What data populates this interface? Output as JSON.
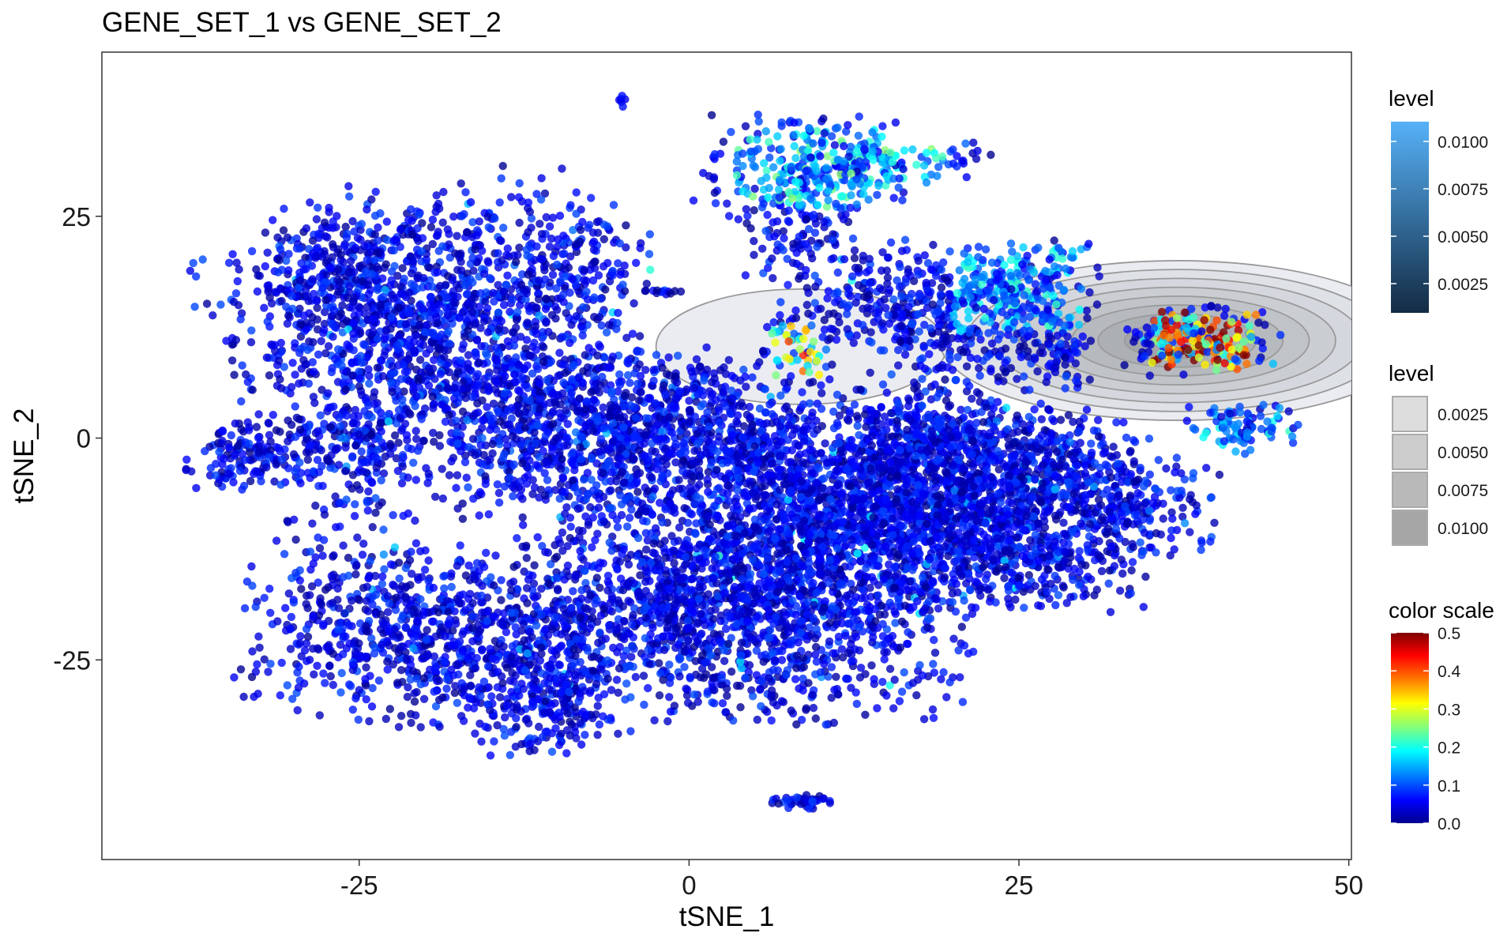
{
  "chart_data": {
    "type": "scatter",
    "title": "GENE_SET_1 vs GENE_SET_2",
    "xlabel": "tSNE_1",
    "ylabel": "tSNE_2",
    "xlim": [
      -44.5,
      50.2
    ],
    "ylim": [
      -47.5,
      43.5
    ],
    "x_ticks": [
      -25,
      0,
      25,
      50
    ],
    "y_ticks": [
      -25,
      0,
      25
    ],
    "grid": false,
    "point_color_variable": "color scale",
    "clusters": [
      {
        "cx": -20,
        "cy": 13,
        "sx": 7.5,
        "sy": 7,
        "n": 1500,
        "tilt": 0.25
      },
      {
        "cx": -33,
        "cy": -2,
        "sx": 2.5,
        "sy": 2,
        "n": 150,
        "tilt": 0.3
      },
      {
        "cx": -27,
        "cy": 18,
        "sx": 2.5,
        "sy": 3,
        "n": 150,
        "tilt": 0
      },
      {
        "cx": -25,
        "cy": -2,
        "sx": 2.5,
        "sy": 4,
        "n": 160,
        "tilt": 0
      },
      {
        "cx": -9,
        "cy": 20,
        "sx": 3,
        "sy": 3,
        "n": 120,
        "tilt": 0
      },
      {
        "cx": -19,
        "cy": -22,
        "sx": 7,
        "sy": 5,
        "n": 900,
        "tilt": -0.2
      },
      {
        "cx": -11,
        "cy": -30,
        "sx": 3,
        "sy": 3,
        "n": 200,
        "tilt": 0
      },
      {
        "cx": -10,
        "cy": -21,
        "sx": 1.5,
        "sy": 1.5,
        "n": 40,
        "tilt": 0
      },
      {
        "cx": -7,
        "cy": 0,
        "sx": 6.5,
        "sy": 4.5,
        "n": 1000,
        "tilt": 0
      },
      {
        "cx": 1,
        "cy": 5,
        "sx": 2,
        "sy": 2,
        "n": 80,
        "tilt": 0
      },
      {
        "cx": 5,
        "cy": -1,
        "sx": 2.5,
        "sy": 2.5,
        "n": 180,
        "tilt": 0
      },
      {
        "cx": 4,
        "cy": -18,
        "sx": 8,
        "sy": 6.5,
        "n": 1800,
        "tilt": 0
      },
      {
        "cx": 12,
        "cy": -10,
        "sx": 6,
        "sy": 4.5,
        "n": 700,
        "tilt": 0
      },
      {
        "cx": 18,
        "cy": -4,
        "sx": 7,
        "sy": 5,
        "n": 900,
        "tilt": 0
      },
      {
        "cx": 24,
        "cy": -12,
        "sx": 5,
        "sy": 3.5,
        "n": 550,
        "tilt": 0
      },
      {
        "cx": 27,
        "cy": -4,
        "sx": 4,
        "sy": 3,
        "n": 300,
        "tilt": 0
      },
      {
        "cx": 34,
        "cy": -8,
        "sx": 3,
        "sy": 3,
        "n": 150,
        "tilt": 0
      },
      {
        "cx": 17,
        "cy": 0,
        "sx": 3.5,
        "sy": 2.5,
        "n": 250,
        "tilt": 0
      },
      {
        "cx": 9,
        "cy": 30,
        "sx": 4,
        "sy": 3,
        "n": 280,
        "tilt": 0
      },
      {
        "cx": 15,
        "cy": 31,
        "sx": 4,
        "sy": 1.2,
        "n": 100,
        "tilt": 0
      },
      {
        "cx": 8,
        "cy": 23,
        "sx": 2,
        "sy": 3,
        "n": 100,
        "tilt": 0
      },
      {
        "cx": 15,
        "cy": 16,
        "sx": 3,
        "sy": 3,
        "n": 200,
        "tilt": 0
      },
      {
        "cx": 20,
        "cy": 12,
        "sx": 3,
        "sy": 3,
        "n": 200,
        "tilt": 0
      },
      {
        "cx": 25,
        "cy": 17,
        "sx": 3,
        "sy": 2.5,
        "n": 250,
        "tilt": 0
      },
      {
        "cx": 28,
        "cy": 10,
        "sx": 1.5,
        "sy": 2,
        "n": 80,
        "tilt": 0
      },
      {
        "cx": 8,
        "cy": 10,
        "sx": 1.5,
        "sy": 2.5,
        "n": 70,
        "tilt": 0
      },
      {
        "cx": 39,
        "cy": 11,
        "sx": 2.8,
        "sy": 1.8,
        "n": 220,
        "tilt": 0
      },
      {
        "cx": 42,
        "cy": 1,
        "sx": 2,
        "sy": 1.3,
        "n": 90,
        "tilt": 0
      },
      {
        "cx": 8.5,
        "cy": -41,
        "sx": 1.2,
        "sy": 0.4,
        "n": 40,
        "tilt": 0
      },
      {
        "cx": -5,
        "cy": 38,
        "sx": 0.2,
        "sy": 0.3,
        "n": 6,
        "tilt": 0
      },
      {
        "cx": -2,
        "cy": 16.5,
        "sx": 1,
        "sy": 0.2,
        "n": 12,
        "tilt": 0
      }
    ],
    "contours": [
      {
        "cx": 8.5,
        "cy": 10.3,
        "rx": 11,
        "ry": 6.5,
        "levels": 1
      },
      {
        "cx": 37,
        "cy": 11,
        "rx": 18,
        "ry": 9,
        "levels": 8
      }
    ],
    "legends": [
      {
        "title": "level",
        "type": "gradient",
        "labels": [
          "0.0100",
          "0.0075",
          "0.0050",
          "0.0025"
        ],
        "colors": [
          "#56b1f7",
          "#132b43"
        ]
      },
      {
        "title": "level",
        "type": "keys",
        "labels": [
          "0.0025",
          "0.0050",
          "0.0075",
          "0.0100"
        ],
        "fills": [
          "#dddddd",
          "#cccccc",
          "#b9b9b9",
          "#a6a6a6"
        ]
      },
      {
        "title": "color scale",
        "type": "gradient",
        "labels": [
          "0.5",
          "0.4",
          "0.3",
          "0.2",
          "0.1",
          "0.0"
        ],
        "colors": [
          "#7f0000",
          "#ff0000",
          "#ff7f00",
          "#ffff00",
          "#7fff7f",
          "#00ffff",
          "#007fff",
          "#0000ff",
          "#00008f"
        ]
      }
    ]
  }
}
